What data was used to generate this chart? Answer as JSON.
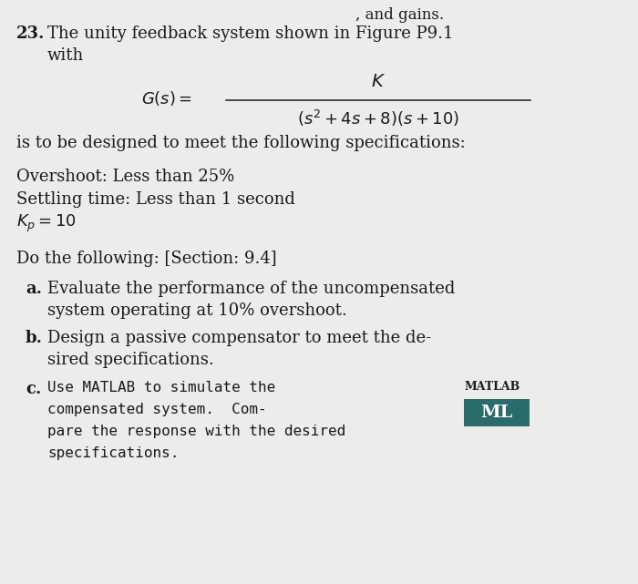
{
  "bg_color": "#edecea",
  "text_color": "#1a1a1a",
  "problem_number": "23.",
  "top_cut_text": ", and gains.",
  "intro_line1": "The unity feedback system shown in Figure P9.1",
  "intro_line2": "with",
  "after_eq_text": "is to be designed to meet the following specifications:",
  "spec1": "Overshoot: Less than 25%",
  "spec2": "Settling time: Less than 1 second",
  "spec3_latex": "$K_p = 10$",
  "do_following": "Do the following: [Section: 9.4]",
  "item_a_label": "a.",
  "item_a_line1": "Evaluate the performance of the uncompensated",
  "item_a_line2": "system operating at 10% overshoot.",
  "item_b_label": "b.",
  "item_b_line1": "Design a passive compensator to meet the de-",
  "item_b_line2": "sired specifications.",
  "item_c_label": "c.",
  "item_c_text_line1": "Use MATLAB to simulate the",
  "item_c_text_line2": "compensated system.  Com-",
  "item_c_text_line3": "pare the response with the desired",
  "item_c_text_line4": "specifications.",
  "matlab_label": "MATLAB",
  "ml_button_text": "ML",
  "ml_button_bg": "#2a6b6b",
  "ml_button_text_color": "#ffffff",
  "fig_width": 7.0,
  "fig_height": 6.41,
  "dpi": 100
}
